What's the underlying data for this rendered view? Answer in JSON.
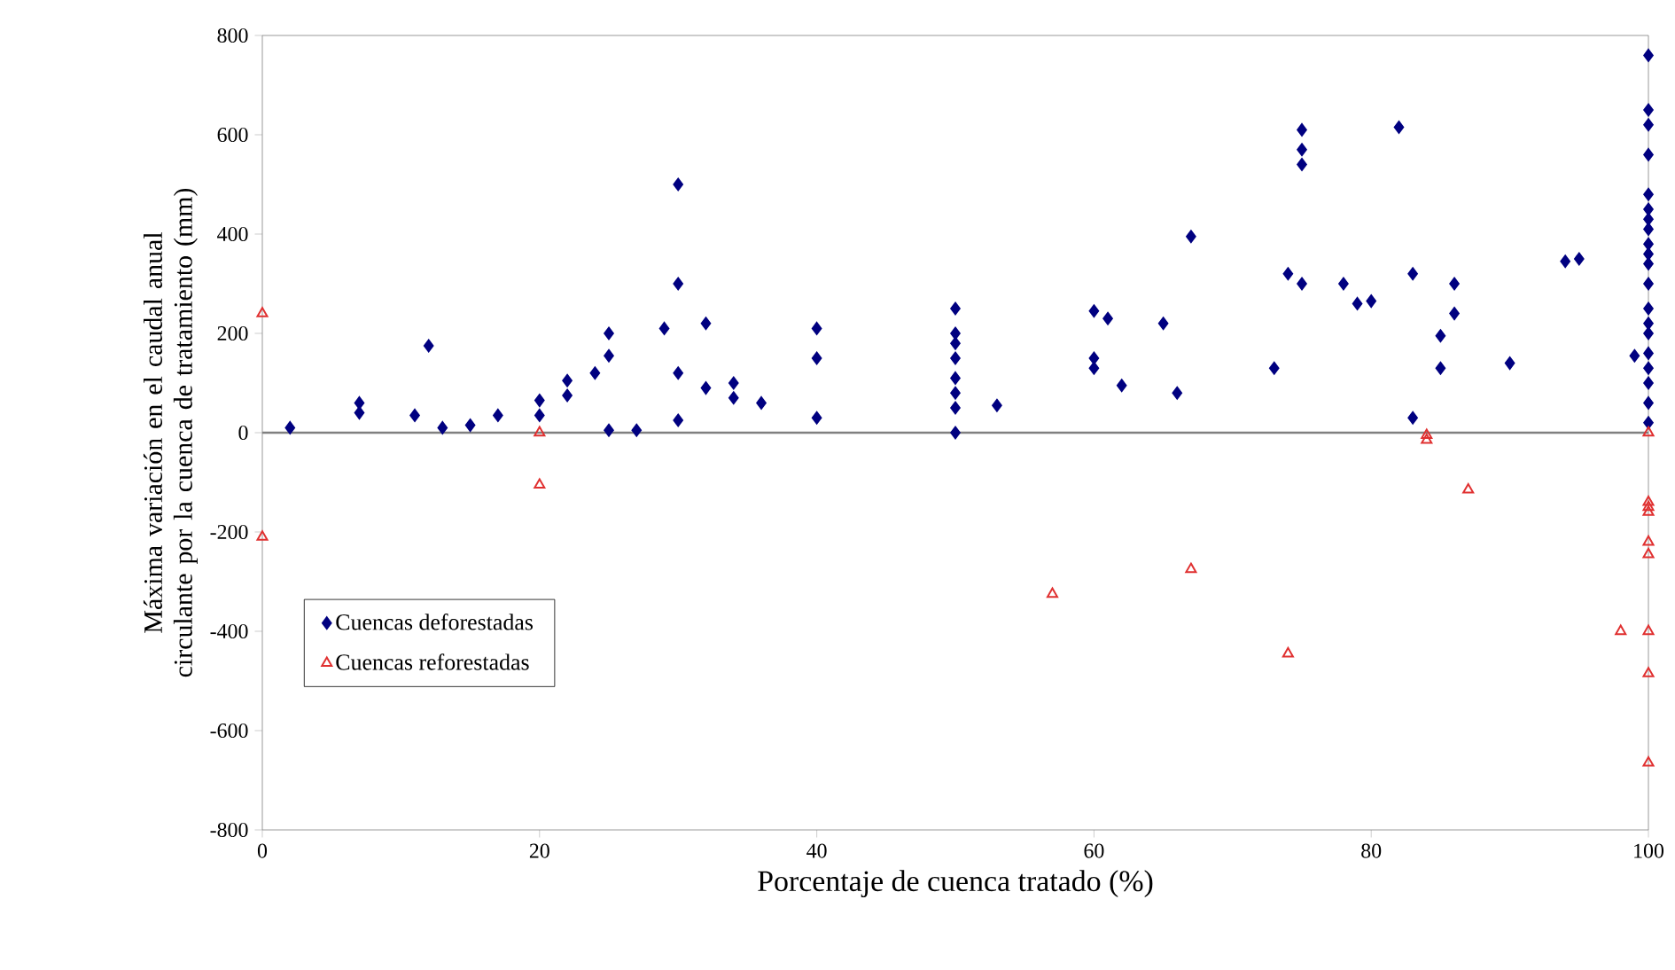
{
  "chart_data": {
    "type": "scatter",
    "xlabel": "Porcentaje de cuenca tratado (%)",
    "ylabel": "Máxima variación en el caudal anual circulante por la cuenca de tratamiento (mm)",
    "xlim": [
      0,
      100
    ],
    "xticks": [
      0,
      20,
      40,
      60,
      80,
      100
    ],
    "ylim": [
      -800,
      800
    ],
    "yticks": [
      -800,
      -600,
      -400,
      -200,
      0,
      200,
      400,
      600,
      800
    ],
    "grid": false,
    "legend": "bottom left",
    "ref_lines": [
      {
        "axis": "y",
        "value": 0,
        "color": "#808080"
      }
    ],
    "series": [
      {
        "name": "Cuencas deforestadas",
        "color": "#000080",
        "marker": "diamond",
        "x": [
          2,
          7,
          7,
          11,
          12,
          13,
          15,
          17,
          20,
          20,
          22,
          22,
          24,
          25,
          25,
          25,
          27,
          29,
          30,
          30,
          30,
          30,
          32,
          32,
          34,
          34,
          36,
          40,
          40,
          40,
          50,
          50,
          50,
          50,
          50,
          50,
          50,
          50,
          53,
          60,
          60,
          60,
          61,
          62,
          65,
          66,
          67,
          73,
          74,
          75,
          75,
          75,
          75,
          78,
          79,
          80,
          82,
          83,
          83,
          85,
          85,
          86,
          86,
          90,
          94,
          95,
          99,
          100,
          100,
          100,
          100,
          100,
          100,
          100,
          100,
          100,
          100,
          100,
          100,
          100,
          100,
          100,
          100,
          100,
          100,
          100,
          100
        ],
        "values": [
          10,
          60,
          40,
          35,
          175,
          10,
          15,
          35,
          65,
          35,
          105,
          75,
          120,
          200,
          155,
          5,
          5,
          210,
          500,
          300,
          120,
          25,
          220,
          90,
          100,
          70,
          60,
          210,
          150,
          30,
          250,
          200,
          180,
          150,
          110,
          80,
          50,
          0,
          55,
          245,
          150,
          130,
          230,
          95,
          220,
          80,
          395,
          130,
          320,
          610,
          570,
          540,
          300,
          300,
          260,
          265,
          615,
          320,
          30,
          195,
          130,
          300,
          240,
          140,
          345,
          350,
          155,
          760,
          650,
          620,
          560,
          480,
          450,
          430,
          410,
          380,
          360,
          340,
          300,
          250,
          220,
          200,
          160,
          130,
          100,
          60,
          20
        ]
      },
      {
        "name": "Cuencas reforestadas",
        "color": "#e03030",
        "marker": "triangle",
        "x": [
          0,
          0,
          20,
          20,
          57,
          67,
          74,
          84,
          84,
          87,
          98,
          100,
          100,
          100,
          100,
          100,
          100,
          100,
          100,
          100
        ],
        "values": [
          240,
          -210,
          0,
          -105,
          -325,
          -275,
          -445,
          -5,
          -15,
          -115,
          -400,
          0,
          -140,
          -150,
          -160,
          -220,
          -245,
          -400,
          -485,
          -665
        ]
      }
    ]
  }
}
